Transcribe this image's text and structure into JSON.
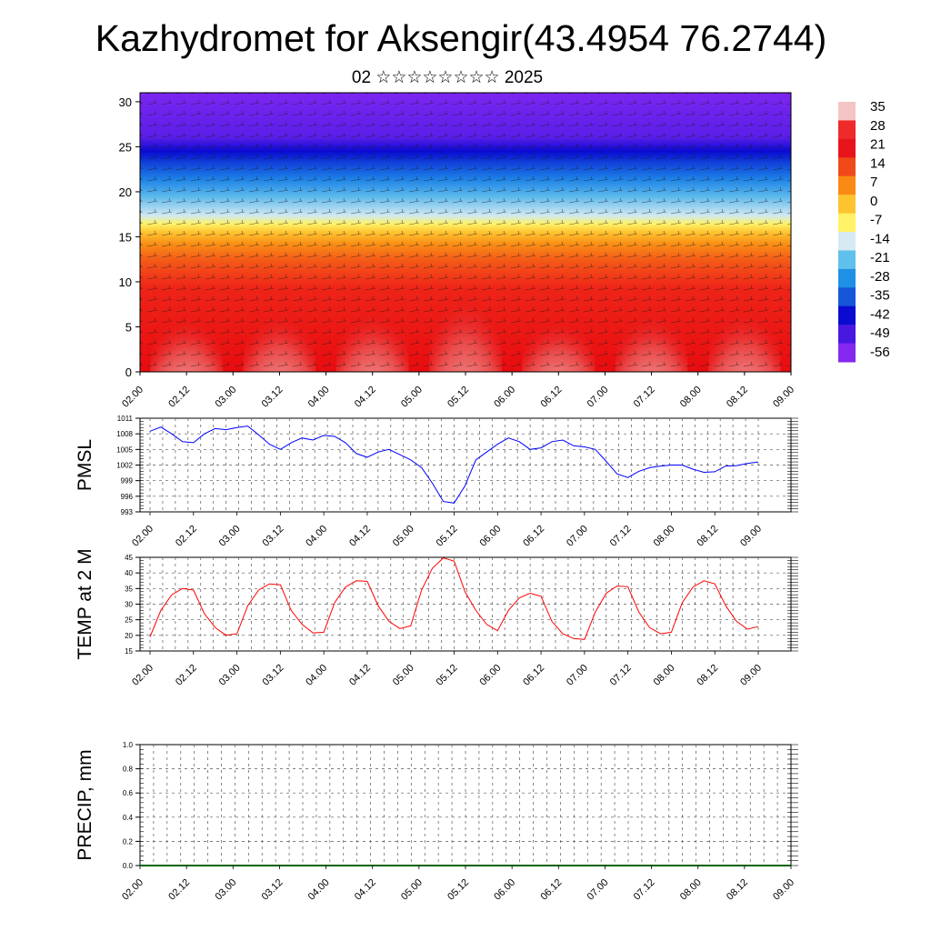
{
  "title": "Kazhydromet for Aksengir(43.4954 76.2744)",
  "subtitle": "02 ☆☆☆☆☆☆☆☆ 2025",
  "time_labels": [
    "02.00",
    "02.12",
    "03.00",
    "03.12",
    "04.00",
    "04.12",
    "05.00",
    "05.12",
    "06.00",
    "06.12",
    "07.00",
    "07.12",
    "08.00",
    "08.12",
    "09.00"
  ],
  "chart_data": [
    {
      "type": "heatmap",
      "name": "cross-section",
      "title": "",
      "ylabel": "",
      "ylim": [
        0,
        31
      ],
      "yticks": [
        0,
        5,
        10,
        15,
        20,
        25,
        30
      ],
      "x": [
        "02.00",
        "02.12",
        "03.00",
        "03.12",
        "04.00",
        "04.12",
        "05.00",
        "05.12",
        "06.00",
        "06.12",
        "07.00",
        "07.12",
        "08.00",
        "08.12",
        "09.00"
      ],
      "colorbar": {
        "labels": [
          "35",
          "28",
          "21",
          "14",
          "7",
          "0",
          "-7",
          "-14",
          "-21",
          "-28",
          "-35",
          "-42",
          "-49",
          "-56"
        ],
        "colors": [
          "#f4c4c4",
          "#ee2a2a",
          "#e8141c",
          "#f04a18",
          "#fa8a14",
          "#fdc430",
          "#fff266",
          "#d6eaf4",
          "#60c0ec",
          "#1e90e6",
          "#1656d8",
          "#0a0ad0",
          "#4818e0",
          "#8428f0"
        ]
      },
      "surface_maxima_by_day": [
        34,
        36,
        37,
        44,
        33,
        36,
        37
      ],
      "annotation": "wind barbs"
    },
    {
      "type": "line",
      "ylabel": "PMSL",
      "ylim": [
        993,
        1011
      ],
      "yticks": [
        993,
        996,
        999,
        1002,
        1005,
        1008,
        1011
      ],
      "x": [
        "02.00",
        "02.03",
        "02.06",
        "02.09",
        "02.12",
        "02.15",
        "02.18",
        "02.21",
        "03.00",
        "03.03",
        "03.06",
        "03.09",
        "03.12",
        "03.15",
        "03.18",
        "03.21",
        "04.00",
        "04.03",
        "04.06",
        "04.09",
        "04.12",
        "04.15",
        "04.18",
        "04.21",
        "05.00",
        "05.03",
        "05.06",
        "05.09",
        "05.12",
        "05.15",
        "05.18",
        "05.21",
        "06.00",
        "06.03",
        "06.06",
        "06.09",
        "06.12",
        "06.15",
        "06.18",
        "06.21",
        "07.00",
        "07.03",
        "07.06",
        "07.09",
        "07.12",
        "07.15",
        "07.18",
        "07.21",
        "08.00",
        "08.03",
        "08.06",
        "08.09",
        "08.12",
        "08.15",
        "08.18",
        "08.21",
        "09.00"
      ],
      "series": [
        {
          "color": "#0000ff",
          "values": [
            1008.5,
            1009.3,
            1008.0,
            1006.5,
            1006.3,
            1008.0,
            1009.0,
            1008.8,
            1009.2,
            1009.5,
            1007.8,
            1006.0,
            1005.0,
            1006.3,
            1007.2,
            1006.8,
            1007.7,
            1007.5,
            1006.3,
            1004.2,
            1003.5,
            1004.5,
            1005.0,
            1004.0,
            1003.0,
            1001.5,
            998.5,
            995.0,
            994.7,
            998.0,
            1003.0,
            1004.5,
            1006.0,
            1007.2,
            1006.5,
            1005.0,
            1005.3,
            1006.5,
            1006.8,
            1005.7,
            1005.5,
            1005.0,
            1002.7,
            1000.3,
            999.6,
            1000.8,
            1001.5,
            1001.8,
            1002.0,
            1002.0,
            1001.2,
            1000.6,
            1000.7,
            1001.8,
            1001.9,
            1002.3,
            1002.6
          ]
        }
      ]
    },
    {
      "type": "line",
      "ylabel": "TEMP at 2 M",
      "ylim": [
        15,
        45
      ],
      "yticks": [
        15,
        20,
        25,
        30,
        35,
        40,
        45
      ],
      "x": [
        "02.00",
        "02.03",
        "02.06",
        "02.09",
        "02.12",
        "02.15",
        "02.18",
        "02.21",
        "03.00",
        "03.03",
        "03.06",
        "03.09",
        "03.12",
        "03.15",
        "03.18",
        "03.21",
        "04.00",
        "04.03",
        "04.06",
        "04.09",
        "04.12",
        "04.15",
        "04.18",
        "04.21",
        "05.00",
        "05.03",
        "05.06",
        "05.09",
        "05.12",
        "05.15",
        "05.18",
        "05.21",
        "06.00",
        "06.03",
        "06.06",
        "06.09",
        "06.12",
        "06.15",
        "06.18",
        "06.21",
        "07.00",
        "07.03",
        "07.06",
        "07.09",
        "07.12",
        "07.15",
        "07.18",
        "07.21",
        "08.00",
        "08.03",
        "08.06",
        "08.09",
        "08.12",
        "08.15",
        "08.18",
        "08.21",
        "09.00"
      ],
      "series": [
        {
          "color": "#ff0000",
          "values": [
            19.5,
            28.0,
            33.0,
            35.0,
            34.5,
            27.0,
            22.5,
            20.0,
            20.5,
            29.5,
            34.5,
            36.5,
            36.2,
            28.0,
            23.5,
            20.8,
            21.0,
            30.5,
            35.5,
            37.5,
            37.3,
            29.5,
            24.5,
            22.2,
            23.0,
            34.5,
            41.5,
            44.8,
            43.8,
            34.0,
            28.0,
            23.5,
            21.5,
            28.0,
            32.0,
            33.5,
            32.5,
            24.5,
            20.5,
            19.0,
            18.7,
            27.5,
            33.5,
            35.8,
            35.6,
            27.5,
            22.5,
            20.5,
            21.0,
            30.5,
            35.5,
            37.5,
            36.5,
            29.5,
            24.5,
            22.0,
            22.8
          ]
        }
      ]
    },
    {
      "type": "line",
      "ylabel": "PRECIP, mm",
      "ylim": [
        0.0,
        1.0
      ],
      "yticks": [
        "0.0",
        "0.2",
        "0.4",
        "0.6",
        "0.8",
        "1.0"
      ],
      "x": [
        "02.00",
        "02.12",
        "03.00",
        "03.12",
        "04.00",
        "04.12",
        "05.00",
        "05.12",
        "06.00",
        "06.12",
        "07.00",
        "07.12",
        "08.00",
        "08.12",
        "09.00"
      ],
      "series": [
        {
          "color": "#006400",
          "values": [
            0,
            0,
            0,
            0,
            0,
            0,
            0,
            0,
            0,
            0,
            0,
            0,
            0,
            0,
            0
          ]
        }
      ]
    }
  ]
}
